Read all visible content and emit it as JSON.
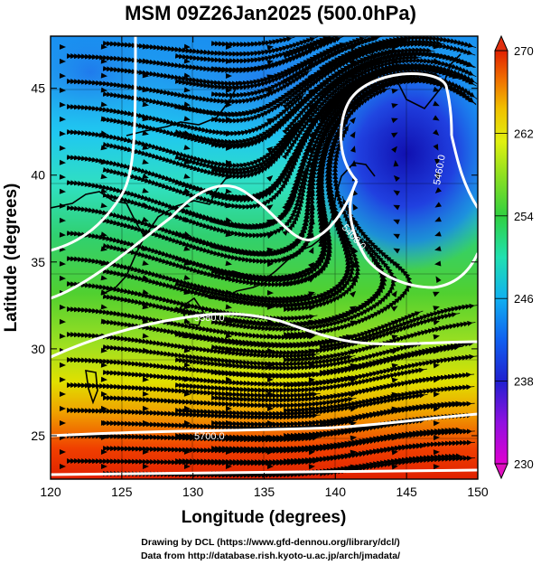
{
  "title": "MSM 09Z26Jan2025 (500.0hPa)",
  "xaxis": {
    "label": "Longitude (degrees)",
    "range": [
      120,
      150
    ],
    "ticks": [
      120,
      125,
      130,
      135,
      140,
      145,
      150
    ]
  },
  "yaxis": {
    "label": "Latitude  (degrees)",
    "range": [
      22.5,
      48
    ],
    "ticks": [
      25,
      30,
      35,
      40,
      45
    ]
  },
  "colorbar": {
    "range": [
      230,
      270
    ],
    "labels": [
      230,
      238,
      246,
      254,
      262,
      270
    ],
    "colors": [
      "#e000d0",
      "#8000e0",
      "#2020d0",
      "#1060f0",
      "#10c8f0",
      "#20e0a0",
      "#30d040",
      "#80e020",
      "#d0f020",
      "#f0d000",
      "#f08000",
      "#e02000"
    ]
  },
  "contours": [
    {
      "label": "5400.0",
      "value": 5400
    },
    {
      "label": "5460.0",
      "value": 5460
    },
    {
      "label": "5580.0",
      "value": 5580
    },
    {
      "label": "5700.0",
      "value": 5700
    }
  ],
  "footer": {
    "line1": "Drawing by DCL (https://www.gfd-dennou.org/library/dcl/)",
    "line2": "Data from http://database.rish.kyoto-u.ac.jp/arch/jmadata/"
  }
}
